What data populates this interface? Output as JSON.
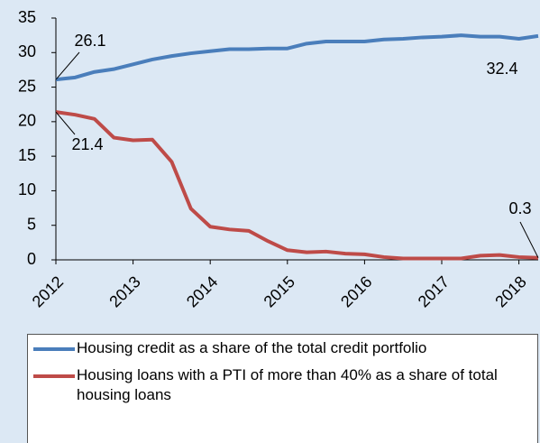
{
  "chart_data": {
    "type": "line",
    "x": [
      2012,
      2012.25,
      2012.5,
      2012.75,
      2013,
      2013.25,
      2013.5,
      2013.75,
      2014,
      2014.25,
      2014.5,
      2014.75,
      2015,
      2015.25,
      2015.5,
      2015.75,
      2016,
      2016.25,
      2016.5,
      2016.75,
      2017,
      2017.25,
      2017.5,
      2017.75,
      2018,
      2018.25
    ],
    "series": [
      {
        "name": "Housing credit as a share of the total credit portfolio",
        "color": "#4a7ebb",
        "values": [
          26.1,
          26.4,
          27.2,
          27.6,
          28.3,
          29.0,
          29.5,
          29.9,
          30.2,
          30.5,
          30.5,
          30.6,
          30.6,
          31.3,
          31.6,
          31.6,
          31.6,
          31.9,
          32.0,
          32.2,
          32.3,
          32.5,
          32.3,
          32.3,
          32.0,
          32.4
        ]
      },
      {
        "name": "Housing loans with a PTI of more than 40% as a share of total housing loans",
        "color": "#be4b48",
        "values": [
          21.4,
          21.0,
          20.4,
          17.7,
          17.3,
          17.4,
          14.2,
          7.4,
          4.8,
          4.4,
          4.2,
          2.7,
          1.4,
          1.1,
          1.2,
          0.9,
          0.8,
          0.4,
          0.2,
          0.2,
          0.2,
          0.2,
          0.6,
          0.7,
          0.4,
          0.3
        ]
      }
    ],
    "xlim": [
      2012,
      2018.25
    ],
    "xticks": [
      2012,
      2013,
      2014,
      2015,
      2016,
      2017,
      2018
    ],
    "ylim": [
      0,
      35
    ],
    "yticks": [
      0,
      5,
      10,
      15,
      20,
      25,
      30,
      35
    ]
  }
}
